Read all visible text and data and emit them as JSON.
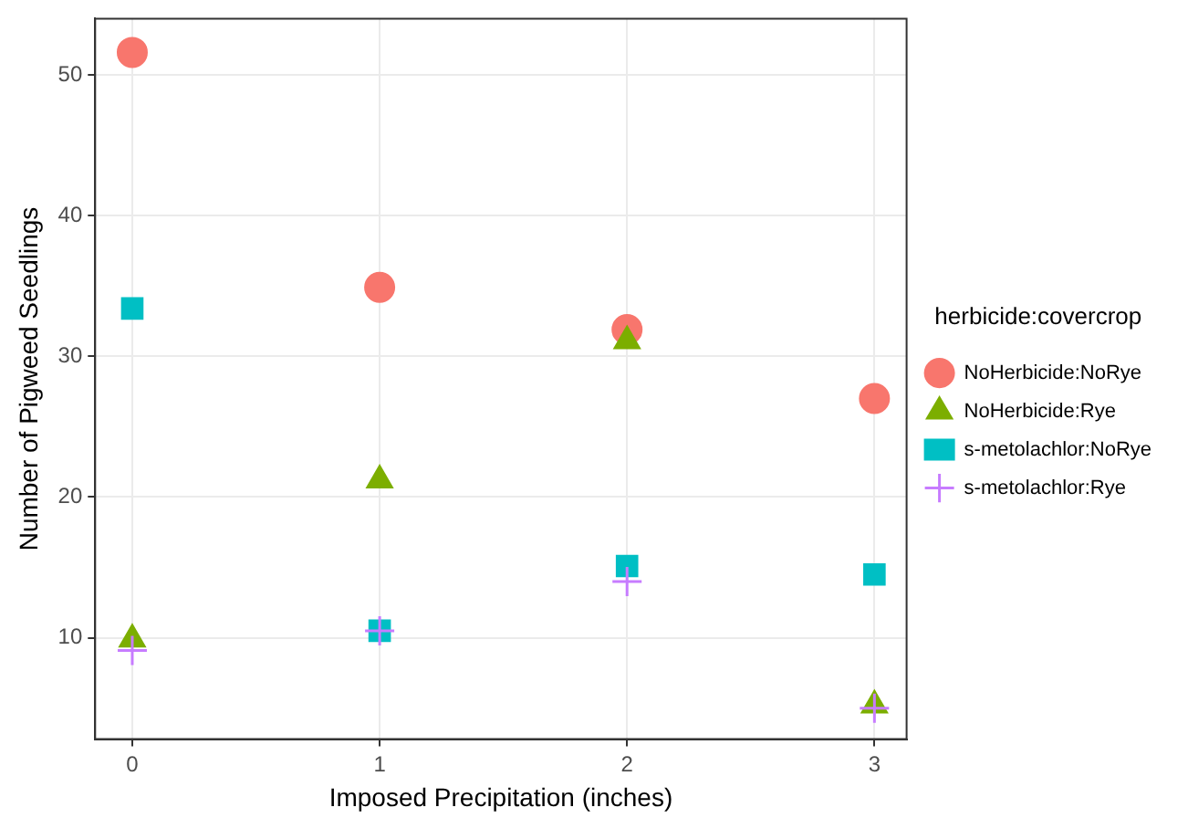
{
  "chart_data": {
    "type": "scatter",
    "xlabel": "Imposed Precipitation (inches)",
    "ylabel": "Number of Pigweed Seedlings",
    "legend_title": "herbicide:covercrop",
    "x": [
      0,
      1,
      2,
      3
    ],
    "series": [
      {
        "name": "NoHerbicide:NoRye",
        "color": "#f8766d",
        "marker": "circle",
        "values": [
          51.6,
          34.9,
          31.9,
          27.0
        ]
      },
      {
        "name": "NoHerbicide:Rye",
        "color": "#7cae00",
        "marker": "triangle",
        "values": [
          9.9,
          21.2,
          31.1,
          5.2
        ]
      },
      {
        "name": "s-metolachlor:NoRye",
        "color": "#00bfc4",
        "marker": "square",
        "values": [
          33.4,
          10.5,
          15.1,
          14.5
        ]
      },
      {
        "name": "s-metolachlor:Rye",
        "color": "#c77cff",
        "marker": "cross",
        "values": [
          9.1,
          10.5,
          14.0,
          5.0
        ]
      }
    ],
    "xlim": [
      -0.15,
      3.13
    ],
    "xticks": [
      0,
      1,
      2,
      3
    ],
    "ylim": [
      2.8,
      54.0
    ],
    "yticks": [
      10,
      20,
      30,
      40,
      50
    ],
    "grid": true,
    "legend": "right"
  }
}
